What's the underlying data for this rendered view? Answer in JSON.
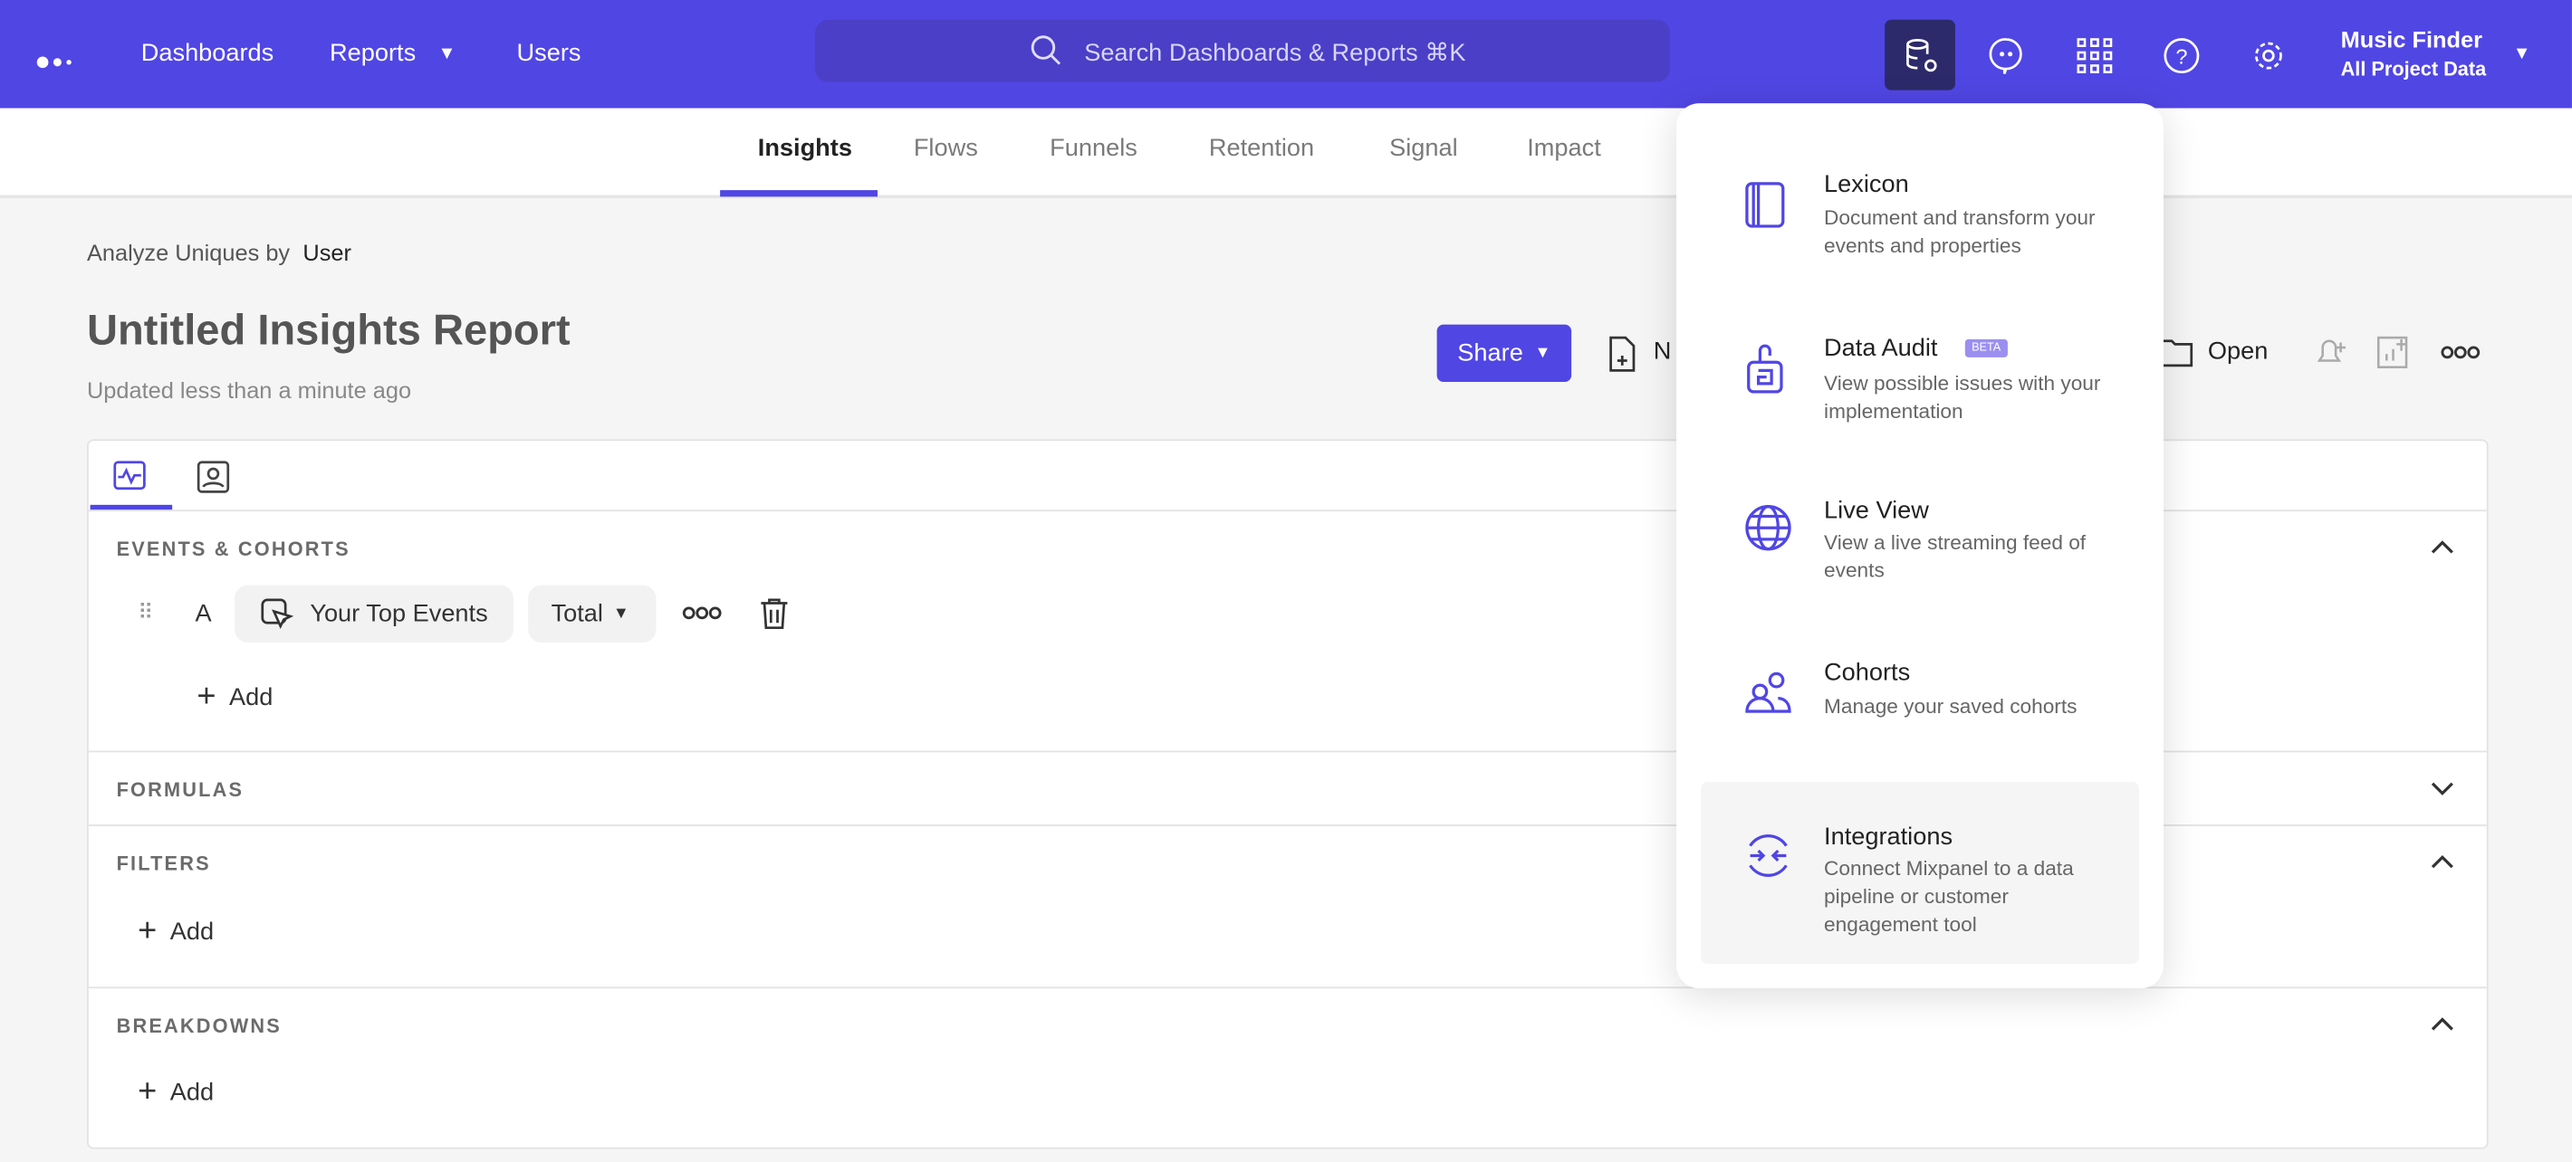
{
  "topbar": {
    "nav": [
      "Dashboards",
      "Reports",
      "Users"
    ],
    "search_placeholder": "Search Dashboards & Reports ⌘K",
    "project_name": "Music Finder",
    "project_scope": "All Project Data",
    "accent": "#5046e4"
  },
  "subnav": {
    "tabs": [
      "Insights",
      "Flows",
      "Funnels",
      "Retention",
      "Signal",
      "Impact"
    ],
    "active": "Insights"
  },
  "report": {
    "analyze_label": "Analyze Uniques by",
    "analyze_value": "User",
    "title": "Untitled Insights Report",
    "updated": "Updated less than a minute ago",
    "share": "Share",
    "new_label": "N",
    "open": "Open"
  },
  "query": {
    "events_header": "EVENTS & COHORTS",
    "row_letter": "A",
    "event": "Your Top Events",
    "measure": "Total",
    "add": "Add",
    "formulas_header": "FORMULAS",
    "filters_header": "FILTERS",
    "breakdowns_header": "BREAKDOWNS"
  },
  "menu": {
    "items": [
      {
        "title": "Lexicon",
        "desc": "Document and transform your events and properties"
      },
      {
        "title": "Data Audit",
        "badge": "BETA",
        "desc": "View possible issues with your implementation"
      },
      {
        "title": "Live View",
        "desc": "View a live streaming feed of events"
      },
      {
        "title": "Cohorts",
        "desc": "Manage your saved cohorts"
      },
      {
        "title": "Integrations",
        "desc": "Connect Mixpanel to a data pipeline or customer engagement tool"
      }
    ]
  }
}
